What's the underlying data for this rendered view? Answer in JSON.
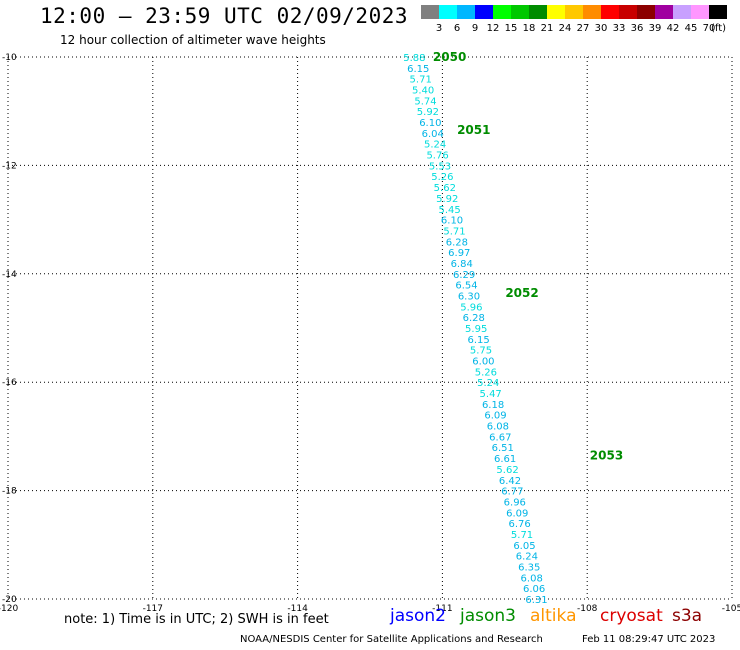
{
  "header": {
    "title": "12:00 – 23:59 UTC 02/09/2023",
    "subtitle": "12 hour collection of altimeter wave heights"
  },
  "colorbar": {
    "labels": [
      "3",
      "6",
      "9",
      "12",
      "15",
      "18",
      "21",
      "24",
      "27",
      "30",
      "33",
      "36",
      "39",
      "42",
      "45",
      "70"
    ],
    "unit": "(ft)",
    "colors": [
      "#808080",
      "#00ffff",
      "#00b7ff",
      "#0000ff",
      "#00ff00",
      "#00c800",
      "#008c00",
      "#ffff00",
      "#ffc800",
      "#ff8c00",
      "#ff0000",
      "#c80000",
      "#8c0000",
      "#a000a0",
      "#c8a0ff",
      "#ff96ff",
      "#000000"
    ]
  },
  "chart_data": {
    "type": "scatter",
    "xlim": [
      -120,
      -105
    ],
    "ylim": [
      -20,
      -10
    ],
    "x_ticks": [
      "-120",
      "-117",
      "-114",
      "-111",
      "-108",
      "-105"
    ],
    "y_ticks": [
      "-10",
      "-12",
      "-14",
      "-16",
      "-18",
      "-20"
    ],
    "grid": true,
    "track": [
      {
        "x": -111.58,
        "y": -10.0,
        "v": "5.88"
      },
      {
        "x": -111.5,
        "y": -10.2,
        "v": "6.15"
      },
      {
        "x": -111.45,
        "y": -10.4,
        "v": "5.71"
      },
      {
        "x": -111.4,
        "y": -10.6,
        "v": "5.40"
      },
      {
        "x": -111.35,
        "y": -10.8,
        "v": "5.74"
      },
      {
        "x": -111.3,
        "y": -11.0,
        "v": "5.92"
      },
      {
        "x": -111.25,
        "y": -11.2,
        "v": "6.10"
      },
      {
        "x": -111.2,
        "y": -11.4,
        "v": "6.04"
      },
      {
        "x": -111.15,
        "y": -11.6,
        "v": "5.24"
      },
      {
        "x": -111.1,
        "y": -11.8,
        "v": "5.76"
      },
      {
        "x": -111.05,
        "y": -12.0,
        "v": "5.53"
      },
      {
        "x": -111.0,
        "y": -12.2,
        "v": "5.26"
      },
      {
        "x": -110.95,
        "y": -12.4,
        "v": "5.62"
      },
      {
        "x": -110.9,
        "y": -12.6,
        "v": "5.92"
      },
      {
        "x": -110.85,
        "y": -12.8,
        "v": "5.45"
      },
      {
        "x": -110.8,
        "y": -13.0,
        "v": "6.10"
      },
      {
        "x": -110.75,
        "y": -13.2,
        "v": "5.71"
      },
      {
        "x": -110.7,
        "y": -13.4,
        "v": "6.28"
      },
      {
        "x": -110.65,
        "y": -13.6,
        "v": "6.97"
      },
      {
        "x": -110.6,
        "y": -13.8,
        "v": "6.84"
      },
      {
        "x": -110.55,
        "y": -14.0,
        "v": "6.29"
      },
      {
        "x": -110.5,
        "y": -14.2,
        "v": "6.54"
      },
      {
        "x": -110.45,
        "y": -14.4,
        "v": "6.30"
      },
      {
        "x": -110.4,
        "y": -14.6,
        "v": "5.96"
      },
      {
        "x": -110.35,
        "y": -14.8,
        "v": "6.28"
      },
      {
        "x": -110.3,
        "y": -15.0,
        "v": "5.95"
      },
      {
        "x": -110.25,
        "y": -15.2,
        "v": "6.15"
      },
      {
        "x": -110.2,
        "y": -15.4,
        "v": "5.75"
      },
      {
        "x": -110.15,
        "y": -15.6,
        "v": "6.00"
      },
      {
        "x": -110.1,
        "y": -15.8,
        "v": "5.26"
      },
      {
        "x": -110.05,
        "y": -16.0,
        "v": "5.24"
      },
      {
        "x": -110.0,
        "y": -16.2,
        "v": "5.47"
      },
      {
        "x": -109.95,
        "y": -16.4,
        "v": "6.18"
      },
      {
        "x": -109.9,
        "y": -16.6,
        "v": "6.09"
      },
      {
        "x": -109.85,
        "y": -16.8,
        "v": "6.08"
      },
      {
        "x": -109.8,
        "y": -17.0,
        "v": "6.67"
      },
      {
        "x": -109.75,
        "y": -17.2,
        "v": "6.51"
      },
      {
        "x": -109.7,
        "y": -17.4,
        "v": "6.61"
      },
      {
        "x": -109.65,
        "y": -17.6,
        "v": "5.62"
      },
      {
        "x": -109.6,
        "y": -17.8,
        "v": "6.42"
      },
      {
        "x": -109.55,
        "y": -18.0,
        "v": "6.77"
      },
      {
        "x": -109.5,
        "y": -18.2,
        "v": "6.96"
      },
      {
        "x": -109.45,
        "y": -18.4,
        "v": "6.09"
      },
      {
        "x": -109.4,
        "y": -18.6,
        "v": "6.76"
      },
      {
        "x": -109.35,
        "y": -18.8,
        "v": "5.71"
      },
      {
        "x": -109.3,
        "y": -19.0,
        "v": "6.05"
      },
      {
        "x": -109.25,
        "y": -19.2,
        "v": "6.24"
      },
      {
        "x": -109.2,
        "y": -19.4,
        "v": "6.35"
      },
      {
        "x": -109.15,
        "y": -19.6,
        "v": "6.08"
      },
      {
        "x": -109.1,
        "y": -19.8,
        "v": "6.06"
      },
      {
        "x": -109.05,
        "y": -20.0,
        "v": "6.31"
      }
    ],
    "time_labels": [
      {
        "x": -110.85,
        "y": -10.0,
        "t": "2050"
      },
      {
        "x": -110.35,
        "y": -11.35,
        "t": "2051"
      },
      {
        "x": -109.35,
        "y": -14.35,
        "t": "2052"
      },
      {
        "x": -107.6,
        "y": -17.35,
        "t": "2053"
      }
    ]
  },
  "footer": {
    "note": "note: 1) Time is in UTC; 2) SWH is in feet",
    "satellites": [
      {
        "name": "jason2",
        "color": "#0000ff"
      },
      {
        "name": "jason3",
        "color": "#008c00"
      },
      {
        "name": "altika",
        "color": "#ff9600"
      },
      {
        "name": "cryosat",
        "color": "#dc0000"
      },
      {
        "name": "s3a",
        "color": "#8c0000"
      }
    ],
    "credit": "NOAA/NESDIS Center for Satellite Applications and Research",
    "timestamp": "Feb 11 08:29:47 UTC 2023"
  }
}
